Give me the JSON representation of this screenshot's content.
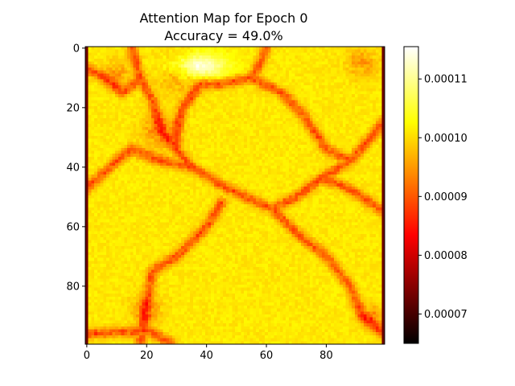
{
  "chart_data": {
    "type": "heatmap",
    "title": "Attention Map for Epoch 0",
    "subtitle": "Accuracy = 49.0%",
    "xlabel": "",
    "ylabel": "",
    "xlim": [
      -0.5,
      99.5
    ],
    "ylim": [
      99.5,
      -0.5
    ],
    "x_ticks": [
      0,
      20,
      40,
      60,
      80
    ],
    "y_ticks": [
      0,
      20,
      40,
      60,
      80
    ],
    "x_tick_labels": [
      "0",
      "20",
      "40",
      "60",
      "80"
    ],
    "y_tick_labels": [
      "0",
      "20",
      "40",
      "60",
      "80"
    ],
    "colormap": "hot",
    "grid": false,
    "colorbar": {
      "range": [
        6.5e-05,
        0.0001155
      ],
      "ticks": [
        7e-05,
        8e-05,
        9e-05,
        0.0001,
        0.00011
      ],
      "tick_labels": [
        "0.00007",
        "0.00008",
        "0.00009",
        "0.00010",
        "0.00011"
      ]
    },
    "data_summary": {
      "shape": [
        100,
        100
      ],
      "typical_cell_value": 0.000101,
      "boundary_value": 9e-05,
      "minimum_value": 6.5e-05,
      "maximum_value": 0.0001155
    }
  }
}
